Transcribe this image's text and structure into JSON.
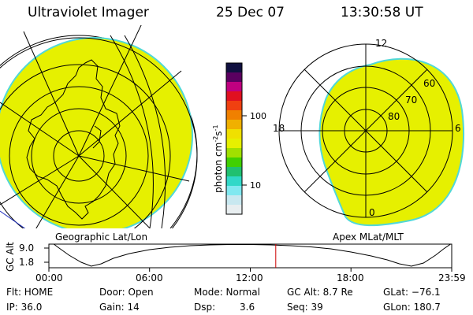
{
  "header": {
    "instrument": "Ultraviolet Imager",
    "date": "25 Dec 07",
    "time": "13:30:58 UT"
  },
  "colorbar": {
    "unit": "photon cm",
    "unit_exp1": "-2",
    "unit_s": "s",
    "unit_exp2": "-1",
    "tick_labels": [
      "100",
      "10"
    ]
  },
  "left_panel": {
    "label": "Geographic Lat/Lon"
  },
  "right_panel": {
    "label": "Apex MLat/MLT",
    "mlt_labels": [
      "12",
      "18",
      "6",
      "0"
    ],
    "mlat_labels": [
      "60",
      "70",
      "80"
    ]
  },
  "altitude_plot": {
    "ylabel": "GC Alt",
    "ytick_top": "9.0",
    "ytick_bottom": "1.8",
    "xticks": [
      "00:00",
      "06:00",
      "12:00",
      "18:00",
      "23:59"
    ],
    "current_time_fraction": 0.5633
  },
  "status": {
    "flt": "Flt: HOME",
    "ip": "IP: 36.0",
    "door": "Door: Open",
    "gain": "Gain: 14",
    "mode": "Mode: Normal",
    "dsp_label": "Dsp:",
    "dsp_value": "3.6",
    "gc_alt": "GC Alt: 8.7 Re",
    "seq": "Seq: 39",
    "glat": "GLat: −76.1",
    "glon": "GLon: 180.7"
  },
  "colors": {
    "fill": "#e6f000",
    "edge": "#50d8d8",
    "marker": "#cc0000"
  }
}
